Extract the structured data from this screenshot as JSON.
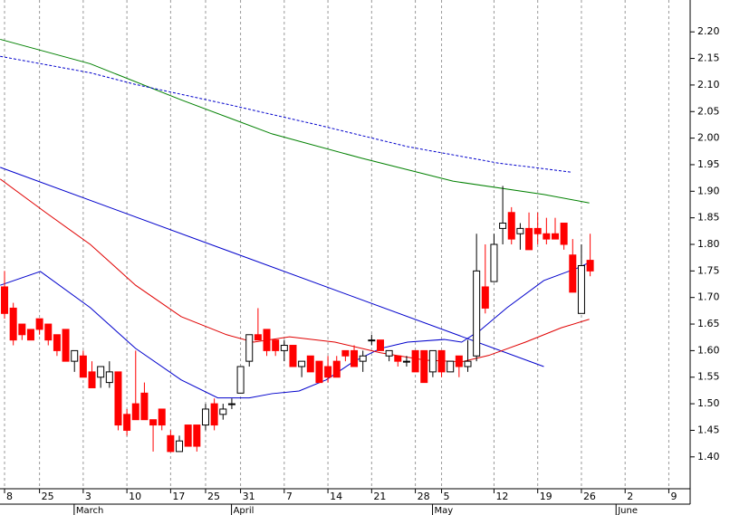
{
  "chart_data": {
    "type": "candlestick",
    "xlim": [
      -0.52,
      78.44
    ],
    "ylim": [
      1.34,
      2.26
    ],
    "yticks": [
      {
        "value": 1.4,
        "label": "1.40"
      },
      {
        "value": 1.45,
        "label": "1.45"
      },
      {
        "value": 1.5,
        "label": "1.50"
      },
      {
        "value": 1.55,
        "label": "1.55"
      },
      {
        "value": 1.6,
        "label": "1.60"
      },
      {
        "value": 1.65,
        "label": "1.65"
      },
      {
        "value": 1.7,
        "label": "1.70"
      },
      {
        "value": 1.75,
        "label": "1.75"
      },
      {
        "value": 1.8,
        "label": "1.80"
      },
      {
        "value": 1.85,
        "label": "1.85"
      },
      {
        "value": 1.9,
        "label": "1.90"
      },
      {
        "value": 1.95,
        "label": "1.95"
      },
      {
        "value": 2.0,
        "label": "2.00"
      },
      {
        "value": 2.05,
        "label": "2.05"
      },
      {
        "value": 2.1,
        "label": "2.10"
      },
      {
        "value": 2.15,
        "label": "2.15"
      },
      {
        "value": 2.2,
        "label": "2.20"
      }
    ],
    "xticks": [
      {
        "value": 0,
        "label": "8"
      },
      {
        "value": 4,
        "label": "25"
      },
      {
        "value": 9,
        "label": "3"
      },
      {
        "value": 14,
        "label": "10"
      },
      {
        "value": 19,
        "label": "17"
      },
      {
        "value": 23,
        "label": "25"
      },
      {
        "value": 27,
        "label": "31"
      },
      {
        "value": 32,
        "label": "7"
      },
      {
        "value": 37,
        "label": "14"
      },
      {
        "value": 42,
        "label": "21"
      },
      {
        "value": 47,
        "label": "28"
      },
      {
        "value": 50,
        "label": "5"
      },
      {
        "value": 56,
        "label": "12"
      },
      {
        "value": 61,
        "label": "19"
      },
      {
        "value": 66,
        "label": "26"
      },
      {
        "value": 71,
        "label": "2"
      },
      {
        "value": 76,
        "label": "9"
      }
    ],
    "months": [
      {
        "value": 9,
        "label": "March"
      },
      {
        "value": 27,
        "label": "April"
      },
      {
        "value": 50,
        "label": "May"
      },
      {
        "value": 71,
        "label": "June"
      }
    ],
    "grid": true,
    "up_color": "#ffffff",
    "down_color": "#ff0000",
    "edge_color": "#000000",
    "open": [
      1.72,
      1.68,
      1.65,
      1.64,
      1.66,
      1.65,
      1.63,
      1.64,
      1.58,
      1.59,
      1.56,
      1.55,
      1.54,
      1.56,
      1.48,
      1.5,
      1.52,
      1.47,
      1.49,
      1.44,
      1.41,
      1.46,
      1.46,
      1.46,
      1.5,
      1.48,
      1.5,
      1.52,
      1.58,
      1.63,
      1.64,
      1.62,
      1.6,
      1.61,
      1.57,
      1.59,
      1.58,
      1.57,
      1.58,
      1.6,
      1.6,
      1.58,
      1.62,
      1.62,
      1.59,
      1.59,
      1.58,
      1.6,
      1.6,
      1.56,
      1.6,
      1.56,
      1.59,
      1.57,
      1.59,
      1.72,
      1.73,
      1.83,
      1.86,
      1.82,
      1.83,
      1.83,
      1.82,
      1.82,
      1.84,
      1.78,
      1.67,
      1.77
    ],
    "high": [
      1.75,
      1.69,
      1.65,
      1.64,
      1.66,
      1.65,
      1.63,
      1.64,
      1.6,
      1.6,
      1.58,
      1.57,
      1.58,
      1.56,
      1.49,
      1.6,
      1.54,
      1.47,
      1.49,
      1.45,
      1.44,
      1.46,
      1.46,
      1.5,
      1.51,
      1.5,
      1.51,
      1.57,
      1.63,
      1.68,
      1.64,
      1.62,
      1.62,
      1.61,
      1.58,
      1.59,
      1.58,
      1.59,
      1.59,
      1.6,
      1.61,
      1.6,
      1.63,
      1.62,
      1.6,
      1.59,
      1.59,
      1.6,
      1.6,
      1.6,
      1.6,
      1.58,
      1.59,
      1.62,
      1.82,
      1.8,
      1.82,
      1.91,
      1.87,
      1.84,
      1.86,
      1.86,
      1.85,
      1.85,
      1.84,
      1.81,
      1.8,
      1.82
    ],
    "low": [
      1.66,
      1.61,
      1.62,
      1.62,
      1.63,
      1.61,
      1.59,
      1.58,
      1.56,
      1.55,
      1.53,
      1.53,
      1.53,
      1.45,
      1.44,
      1.47,
      1.47,
      1.41,
      1.45,
      1.41,
      1.41,
      1.42,
      1.41,
      1.45,
      1.45,
      1.47,
      1.49,
      1.52,
      1.57,
      1.62,
      1.59,
      1.59,
      1.58,
      1.57,
      1.55,
      1.56,
      1.54,
      1.54,
      1.55,
      1.58,
      1.57,
      1.56,
      1.61,
      1.6,
      1.58,
      1.57,
      1.57,
      1.56,
      1.54,
      1.55,
      1.55,
      1.56,
      1.55,
      1.56,
      1.58,
      1.67,
      1.73,
      1.8,
      1.8,
      1.79,
      1.79,
      1.8,
      1.8,
      1.81,
      1.79,
      1.71,
      1.67,
      1.74
    ],
    "close": [
      1.67,
      1.62,
      1.63,
      1.62,
      1.64,
      1.62,
      1.6,
      1.58,
      1.6,
      1.55,
      1.53,
      1.57,
      1.56,
      1.46,
      1.45,
      1.47,
      1.47,
      1.46,
      1.46,
      1.41,
      1.43,
      1.42,
      1.42,
      1.49,
      1.46,
      1.49,
      1.5,
      1.57,
      1.63,
      1.62,
      1.6,
      1.6,
      1.61,
      1.57,
      1.58,
      1.56,
      1.54,
      1.55,
      1.55,
      1.59,
      1.57,
      1.59,
      1.62,
      1.6,
      1.6,
      1.58,
      1.58,
      1.56,
      1.54,
      1.6,
      1.56,
      1.58,
      1.57,
      1.58,
      1.75,
      1.68,
      1.8,
      1.84,
      1.81,
      1.83,
      1.79,
      1.82,
      1.81,
      1.81,
      1.8,
      1.71,
      1.76,
      1.75
    ],
    "lines": [
      {
        "color": "#008000",
        "dashed": false,
        "x": [
          -0.5,
          9.8,
          20.2,
          30.6,
          40.9,
          51.3,
          61.7,
          66.9
        ],
        "values": [
          2.186,
          2.14,
          2.072,
          2.008,
          1.962,
          1.919,
          1.894,
          1.878
        ]
      },
      {
        "color": "#0000cc",
        "dashed": true,
        "x": [
          -0.5,
          9.8,
          15,
          25.4,
          35.8,
          46.1,
          56.5,
          64.8
        ],
        "values": [
          2.154,
          2.123,
          2.101,
          2.064,
          2.025,
          1.984,
          1.953,
          1.936
        ]
      },
      {
        "color": "#0000cc",
        "dashed": false,
        "x": [
          -0.5,
          61.7
        ],
        "values": [
          1.945,
          1.57
        ]
      },
      {
        "color": "#0000cc",
        "dashed": false,
        "x": [
          -0.5,
          4.1,
          9.8,
          15,
          20.2,
          24.4,
          28,
          30.6,
          33.7,
          36.8,
          39.9,
          43,
          46.1,
          50.3,
          52.3,
          54.4,
          57.5,
          61.7,
          65.8,
          66.9
        ],
        "values": [
          1.723,
          1.749,
          1.681,
          1.604,
          1.545,
          1.511,
          1.511,
          1.519,
          1.524,
          1.545,
          1.579,
          1.604,
          1.616,
          1.621,
          1.616,
          1.638,
          1.681,
          1.732,
          1.757,
          1.766
        ]
      },
      {
        "color": "#e00000",
        "dashed": false,
        "x": [
          -0.5,
          4.7,
          9.8,
          15,
          20.2,
          25.4,
          28.5,
          32.6,
          37.8,
          43,
          48.2,
          52.3,
          55.4,
          59.6,
          63.7,
          66.9
        ],
        "values": [
          1.923,
          1.86,
          1.8,
          1.723,
          1.664,
          1.63,
          1.616,
          1.626,
          1.616,
          1.596,
          1.582,
          1.579,
          1.591,
          1.616,
          1.643,
          1.659
        ]
      }
    ]
  }
}
